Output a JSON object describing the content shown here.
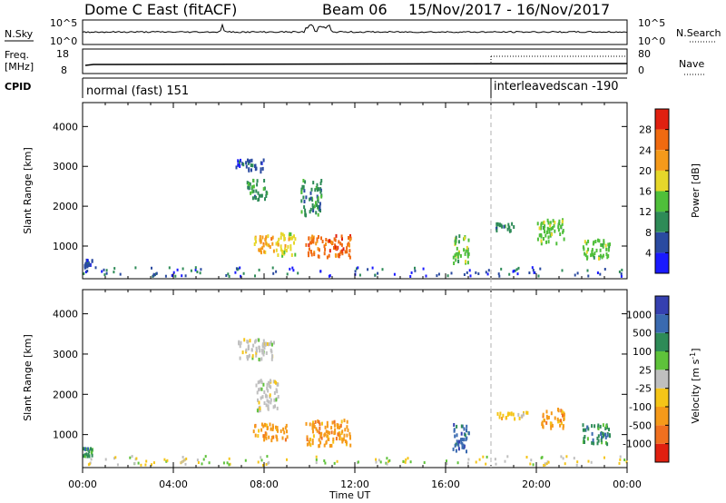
{
  "header": {
    "station": "Dome C East (fitACF)",
    "beam": "Beam 06",
    "dates": "15/Nov/2017 - 16/Nov/2017"
  },
  "strip_labels": {
    "nsky": "N.Sky",
    "nsky_ticks": [
      "10^5",
      "10^0"
    ],
    "nsearch": "N.Search",
    "nsearch_ticks": [
      "10^5",
      "10^0"
    ],
    "freq": "Freq.",
    "freq_unit": "[MHz]",
    "freq_ticks": [
      "18",
      "8"
    ],
    "nave": "Nave",
    "nave_ticks": [
      "80",
      "0"
    ],
    "cpid": "CPID"
  },
  "modes": [
    {
      "name": "normal (fast) 151",
      "start_hour": 0
    },
    {
      "name": "interleavedscan -190",
      "start_hour": 18
    }
  ],
  "x_axis": {
    "label": "Time UT",
    "range_hours": [
      0,
      24
    ],
    "tick_hours": [
      0,
      4,
      8,
      12,
      16,
      20,
      24
    ],
    "tick_labels": [
      "00:00",
      "04:00",
      "08:00",
      "12:00",
      "16:00",
      "20:00",
      "00:00"
    ]
  },
  "colors": {
    "power_scale": [
      "#1a1aff",
      "#2a4aa0",
      "#2e8b57",
      "#4fbf3a",
      "#e6d72a",
      "#f59a1a",
      "#f06a10",
      "#e02010"
    ],
    "velocity_scale": [
      "#3540b0",
      "#3a6ab0",
      "#2e8b57",
      "#5ec23a",
      "#bfbfbf",
      "#f5c518",
      "#f59a1a",
      "#f07020",
      "#e02010"
    ]
  },
  "chart_data": [
    {
      "type": "heatmap",
      "panel": "power",
      "ylabel": "Slant Range [km]",
      "ylim": [
        180,
        4600
      ],
      "yticks": [
        1000,
        2000,
        3000,
        4000
      ],
      "colorbar_label": "Power [dB]",
      "colorbar_ticks": [
        4,
        8,
        12,
        16,
        20,
        24,
        28
      ],
      "clim": [
        0,
        32
      ],
      "regions": [
        {
          "t0": 0.0,
          "t1": 0.4,
          "r0": 500,
          "r1": 700,
          "value": 6
        },
        {
          "t0": 6.7,
          "t1": 8.0,
          "r0": 2900,
          "r1": 3200,
          "value": 6
        },
        {
          "t0": 7.2,
          "t1": 8.1,
          "r0": 2200,
          "r1": 2700,
          "value": 8
        },
        {
          "t0": 7.5,
          "t1": 8.4,
          "r0": 850,
          "r1": 1300,
          "value": 20
        },
        {
          "t0": 8.5,
          "t1": 9.4,
          "r0": 800,
          "r1": 1350,
          "value": 16
        },
        {
          "t0": 9.8,
          "t1": 11.8,
          "r0": 750,
          "r1": 1300,
          "value": 26
        },
        {
          "t0": 9.6,
          "t1": 10.5,
          "r0": 1800,
          "r1": 2700,
          "value": 10
        },
        {
          "t0": 16.3,
          "t1": 17.0,
          "r0": 600,
          "r1": 1300,
          "value": 14
        },
        {
          "t0": 18.2,
          "t1": 19.0,
          "r0": 1400,
          "r1": 1600,
          "value": 10
        },
        {
          "t0": 20.0,
          "t1": 21.2,
          "r0": 1100,
          "r1": 1700,
          "value": 14
        },
        {
          "t0": 22.0,
          "t1": 23.2,
          "r0": 700,
          "r1": 1200,
          "value": 12
        }
      ]
    },
    {
      "type": "heatmap",
      "panel": "velocity",
      "ylabel": "Slant Range [km]",
      "ylim": [
        180,
        4600
      ],
      "yticks": [
        1000,
        2000,
        3000,
        4000
      ],
      "colorbar_label": "Velocity [m s-1]",
      "colorbar_ticks": [
        1000,
        500,
        100,
        25,
        -25,
        -100,
        -500,
        -1000
      ],
      "regions": [
        {
          "t0": 0.0,
          "t1": 0.4,
          "r0": 500,
          "r1": 700,
          "value": 100
        },
        {
          "t0": 6.8,
          "t1": 8.4,
          "r0": 2900,
          "r1": 3400,
          "value": 0
        },
        {
          "t0": 7.6,
          "t1": 8.6,
          "r0": 1600,
          "r1": 2400,
          "value": 0
        },
        {
          "t0": 7.5,
          "t1": 9.0,
          "r0": 900,
          "r1": 1300,
          "value": -300
        },
        {
          "t0": 9.8,
          "t1": 11.8,
          "r0": 750,
          "r1": 1400,
          "value": -300
        },
        {
          "t0": 16.3,
          "t1": 17.0,
          "r0": 600,
          "r1": 1300,
          "value": 500
        },
        {
          "t0": 18.2,
          "t1": 19.6,
          "r0": 1400,
          "r1": 1600,
          "value": -100
        },
        {
          "t0": 20.2,
          "t1": 21.2,
          "r0": 1200,
          "r1": 1700,
          "value": -500
        },
        {
          "t0": 22.0,
          "t1": 23.2,
          "r0": 800,
          "r1": 1300,
          "value": 100
        }
      ]
    }
  ]
}
